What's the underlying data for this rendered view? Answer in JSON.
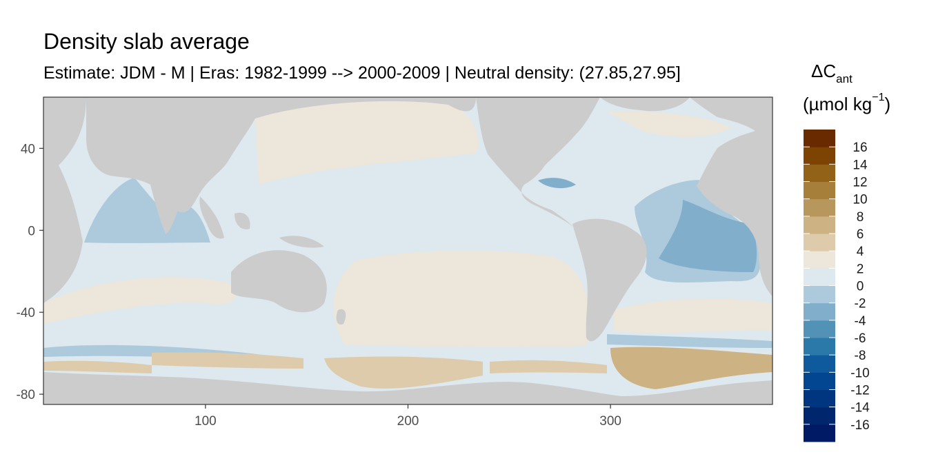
{
  "chart_data": {
    "type": "heatmap",
    "title": "Density slab average",
    "subtitle": "Estimate: JDM - M | Eras: 1982-1999 --> 2000-2009 | Neutral density: (27.85,27.95]",
    "legend": {
      "title_symbol": "ΔC",
      "title_subscript": "ant",
      "unit_prefix": "(µmol kg",
      "unit_exponent": "−1",
      "unit_suffix": ")",
      "breaks": [
        -18,
        -16,
        -14,
        -12,
        -10,
        -8,
        -6,
        -4,
        -2,
        0,
        2,
        4,
        6,
        8,
        10,
        12,
        14,
        16,
        18
      ],
      "labels": [
        "16",
        "14",
        "12",
        "10",
        "8",
        "6",
        "4",
        "2",
        "0",
        "-2",
        "-4",
        "-6",
        "-8",
        "-10",
        "-12",
        "-14",
        "-16"
      ],
      "colors": [
        "#001a66",
        "#00276e",
        "#003580",
        "#024692",
        "#0e5a9c",
        "#2b79a8",
        "#5292b6",
        "#80aecb",
        "#adcadc",
        "#dde8ef",
        "#ede6da",
        "#decbab",
        "#cdb283",
        "#b8975c",
        "#a6803a",
        "#926218",
        "#7d4303",
        "#6a2a00",
        "#561500"
      ]
    },
    "x_axis": {
      "ticks": [
        100,
        200,
        300
      ],
      "range": [
        20,
        380
      ]
    },
    "y_axis": {
      "ticks": [
        40,
        0,
        -40,
        -80
      ],
      "range": [
        -85,
        65
      ]
    },
    "colors": {
      "land": "#cccccc",
      "panel_border": "#333333",
      "tick_text": "#4d4d4d"
    },
    "grid": false,
    "legend_placement": "right"
  }
}
